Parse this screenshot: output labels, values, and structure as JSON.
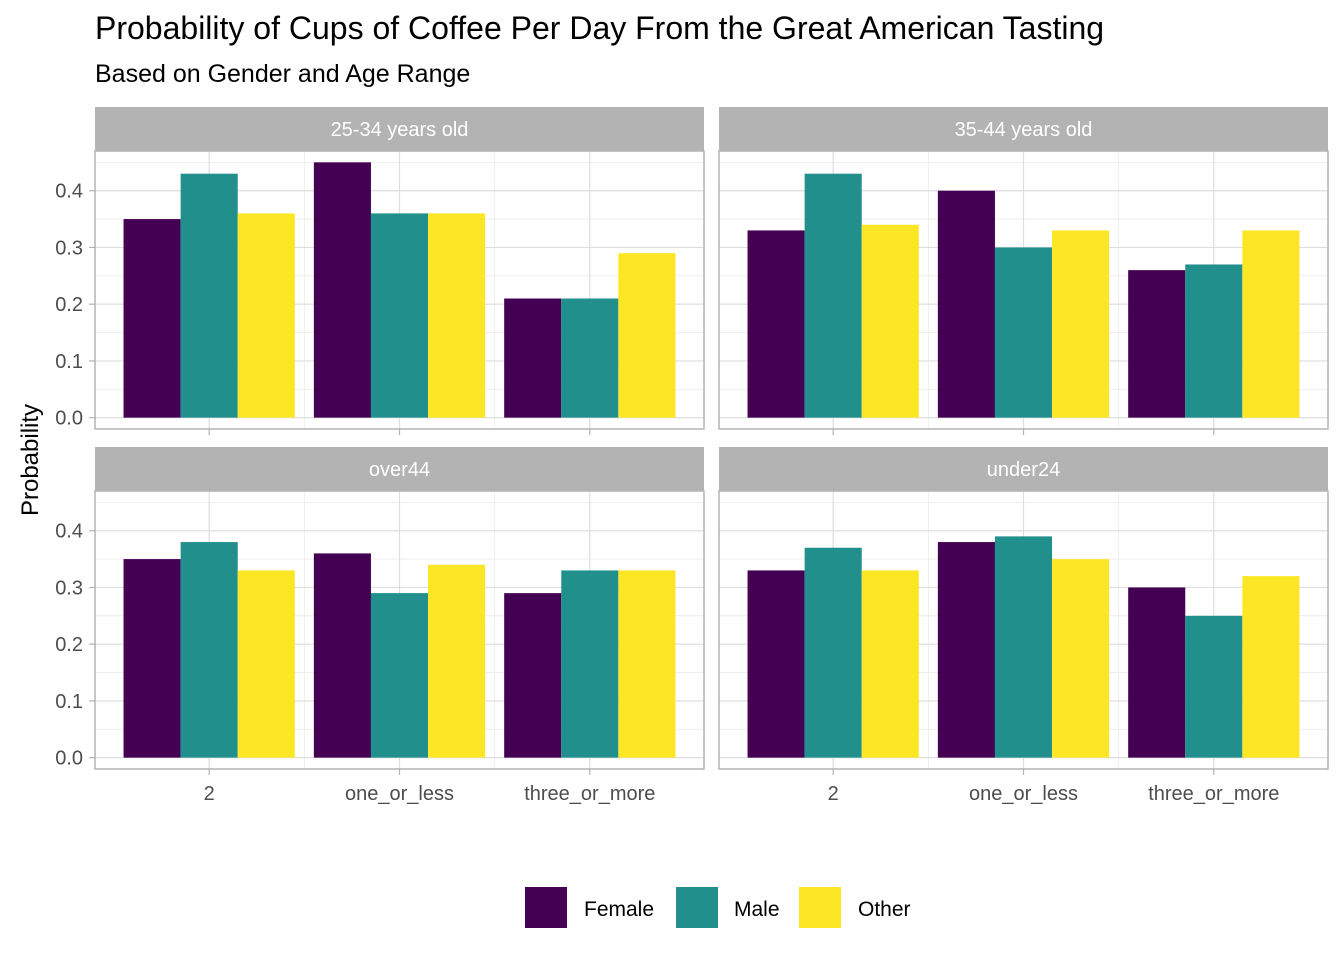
{
  "chart_data": {
    "type": "bar",
    "layout": "facet-grid-2x2",
    "title": "Probability of Cups of Coffee Per Day From the Great American Tasting",
    "subtitle": "Based on Gender and Age Range",
    "xlabel": "",
    "ylabel": "Probability",
    "ylim": [
      -0.02,
      0.47
    ],
    "yticks": [
      0.0,
      0.1,
      0.2,
      0.3,
      0.4
    ],
    "ytick_labels": [
      "0.0",
      "0.1",
      "0.2",
      "0.3",
      "0.4"
    ],
    "categories": [
      "2",
      "one_or_less",
      "three_or_more"
    ],
    "grid": true,
    "legend_position": "bottom",
    "series_order": [
      "Female",
      "Male",
      "Other"
    ],
    "colors": {
      "Female": "#440154",
      "Male": "#21908C",
      "Other": "#FDE725"
    },
    "facets": [
      {
        "label": "25-34 years old",
        "series": [
          {
            "name": "Female",
            "values": [
              0.35,
              0.45,
              0.21
            ]
          },
          {
            "name": "Male",
            "values": [
              0.43,
              0.36,
              0.21
            ]
          },
          {
            "name": "Other",
            "values": [
              0.36,
              0.36,
              0.29
            ]
          }
        ]
      },
      {
        "label": "35-44 years old",
        "series": [
          {
            "name": "Female",
            "values": [
              0.33,
              0.4,
              0.26
            ]
          },
          {
            "name": "Male",
            "values": [
              0.43,
              0.3,
              0.27
            ]
          },
          {
            "name": "Other",
            "values": [
              0.34,
              0.33,
              0.33
            ]
          }
        ]
      },
      {
        "label": "over44",
        "series": [
          {
            "name": "Female",
            "values": [
              0.35,
              0.36,
              0.29
            ]
          },
          {
            "name": "Male",
            "values": [
              0.38,
              0.29,
              0.33
            ]
          },
          {
            "name": "Other",
            "values": [
              0.33,
              0.34,
              0.33
            ]
          }
        ]
      },
      {
        "label": "under24",
        "series": [
          {
            "name": "Female",
            "values": [
              0.33,
              0.38,
              0.3
            ]
          },
          {
            "name": "Male",
            "values": [
              0.37,
              0.39,
              0.25
            ]
          },
          {
            "name": "Other",
            "values": [
              0.33,
              0.35,
              0.32
            ]
          }
        ]
      }
    ]
  }
}
